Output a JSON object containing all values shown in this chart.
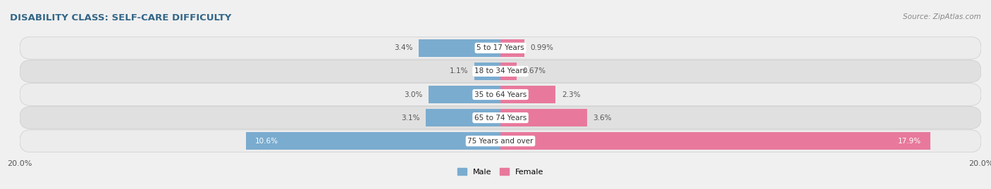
{
  "title": "DISABILITY CLASS: SELF-CARE DIFFICULTY",
  "source": "Source: ZipAtlas.com",
  "categories": [
    "5 to 17 Years",
    "18 to 34 Years",
    "35 to 64 Years",
    "65 to 74 Years",
    "75 Years and over"
  ],
  "male_values": [
    3.4,
    1.1,
    3.0,
    3.1,
    10.6
  ],
  "female_values": [
    0.99,
    0.67,
    2.3,
    3.6,
    17.9
  ],
  "male_label_colors": [
    "#333333",
    "#333333",
    "#333333",
    "#333333",
    "#ffffff"
  ],
  "female_label_colors": [
    "#333333",
    "#333333",
    "#333333",
    "#333333",
    "#ffffff"
  ],
  "male_color": "#7aaccf",
  "female_color": "#e8799c",
  "row_bg_color_odd": "#ececec",
  "row_bg_color_even": "#e0e0e0",
  "max_val": 20.0,
  "title_fontsize": 9.5,
  "label_fontsize": 7.5,
  "tick_fontsize": 8,
  "source_fontsize": 7.5,
  "cat_fontsize": 7.5
}
